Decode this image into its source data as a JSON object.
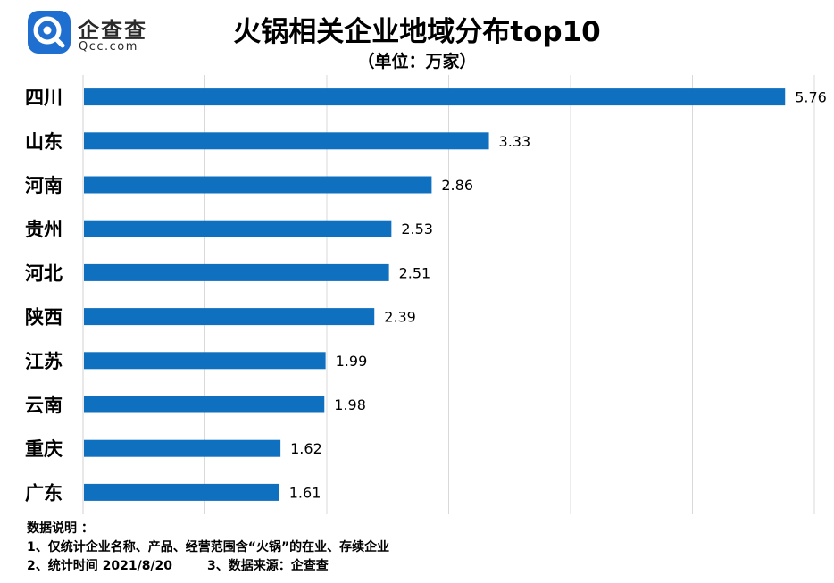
{
  "logo": {
    "name": "企查查",
    "domain": "Qcc.com"
  },
  "title": "火锅相关企业地域分布top10",
  "subtitle": "（单位：万家）",
  "chart_data": {
    "type": "bar",
    "orientation": "horizontal",
    "categories": [
      "四川",
      "山东",
      "河南",
      "贵州",
      "河北",
      "陕西",
      "江苏",
      "云南",
      "重庆",
      "广东"
    ],
    "values": [
      5.76,
      3.33,
      2.86,
      2.53,
      2.51,
      2.39,
      1.99,
      1.98,
      1.62,
      1.61
    ],
    "value_labels": [
      "5.76",
      "3.33",
      "2.86",
      "2.53",
      "2.51",
      "2.39",
      "1.99",
      "1.98",
      "1.62",
      "1.61"
    ],
    "xlim": [
      0,
      6
    ],
    "grid": true,
    "bar_color": "#1070c0",
    "grid_color": "#d9d9d9"
  },
  "notes": {
    "heading": "数据说明 ：",
    "line1": "1、仅统计企业名称、产品、经营范围含“火锅”的在业、存续企业",
    "line2": "2、统计时间 2021/8/20        3、数据来源：企查查"
  }
}
